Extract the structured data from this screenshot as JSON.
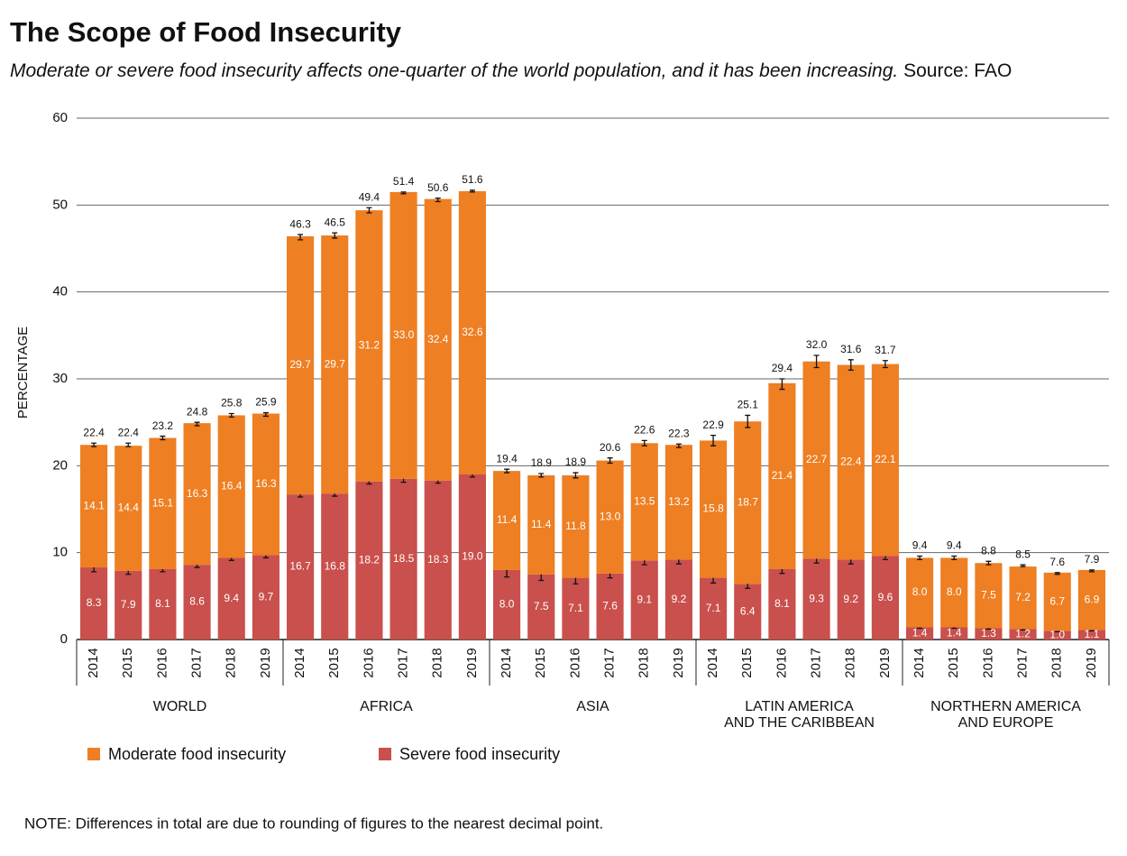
{
  "chart_data": {
    "type": "stacked-bar",
    "title": "The Scope of Food Insecurity",
    "subtitle": "Moderate or severe food insecurity affects one-quarter of the world population, and it has been increasing.",
    "source": "Source: FAO",
    "y_label": "PERCENTAGE",
    "note": "NOTE: Differences in total are due to rounding of figures to the nearest decimal point.",
    "categories": [
      "2014",
      "2015",
      "2016",
      "2017",
      "2018",
      "2019",
      "2014",
      "2015",
      "2016",
      "2017",
      "2018",
      "2019",
      "2014",
      "2015",
      "2016",
      "2017",
      "2018",
      "2019",
      "2014",
      "2015",
      "2016",
      "2017",
      "2018",
      "2019",
      "2014",
      "2015",
      "2016",
      "2017",
      "2018",
      "2019"
    ],
    "groups": [
      [
        "WORLD"
      ],
      [
        "AFRICA"
      ],
      [
        "ASIA"
      ],
      [
        "LATIN AMERICA",
        "AND THE CARIBBEAN"
      ],
      [
        "NORTHERN AMERICA",
        "AND EUROPE"
      ]
    ],
    "series": [
      {
        "name": "Moderate food insecurity",
        "color": "#ee7f22",
        "values": [
          14.1,
          14.4,
          15.1,
          16.3,
          16.4,
          16.3,
          29.7,
          29.7,
          31.2,
          33.0,
          32.4,
          32.6,
          11.4,
          11.4,
          11.8,
          13.0,
          13.5,
          13.2,
          15.8,
          18.7,
          21.4,
          22.7,
          22.4,
          22.1,
          8.0,
          8.0,
          7.5,
          7.2,
          6.7,
          6.9
        ],
        "value_labels": [
          "14.1",
          "14.4",
          "15.1",
          "16.3",
          "16.4",
          "16.3",
          "29.7",
          "29.7",
          "31.2",
          "33.0",
          "32.4",
          "32.6",
          "11.4",
          "11.4",
          "11.8",
          "13.0",
          "13.5",
          "13.2",
          "15.8",
          "18.7",
          "21.4",
          "22.7",
          "22.4",
          "22.1",
          "8.0",
          "8.0",
          "7.5",
          "7.2",
          "6.7",
          "6.9"
        ]
      },
      {
        "name": "Severe food insecurity",
        "color": "#c9504c",
        "values": [
          8.3,
          7.9,
          8.1,
          8.6,
          9.4,
          9.7,
          16.7,
          16.8,
          18.2,
          18.5,
          18.3,
          19.0,
          8.0,
          7.5,
          7.1,
          7.6,
          9.1,
          9.2,
          7.1,
          6.4,
          8.1,
          9.3,
          9.2,
          9.6,
          1.4,
          1.4,
          1.3,
          1.2,
          1.0,
          1.1
        ],
        "value_labels": [
          "8.3",
          "7.9",
          "8.1",
          "8.6",
          "9.4",
          "9.7",
          "16.7",
          "16.8",
          "18.2",
          "18.5",
          "18.3",
          "19.0",
          "8.0",
          "7.5",
          "7.1",
          "7.6",
          "9.1",
          "9.2",
          "7.1",
          "6.4",
          "8.1",
          "9.3",
          "9.2",
          "9.6",
          "1.4",
          "1.4",
          "1.3",
          "1.2",
          "1.0",
          "1.1"
        ],
        "errors": [
          0.5,
          0.4,
          0.3,
          0.3,
          0.3,
          0.3,
          0.3,
          0.3,
          0.3,
          0.4,
          0.3,
          0.3,
          0.8,
          0.7,
          0.7,
          0.5,
          0.5,
          0.5,
          0.6,
          0.5,
          0.5,
          0.5,
          0.5,
          0.4,
          0.1,
          0.1,
          0.1,
          0.1,
          0.1,
          0.1
        ]
      }
    ],
    "totals": [
      22.4,
      22.4,
      23.2,
      24.8,
      25.8,
      25.9,
      46.3,
      46.5,
      49.4,
      51.4,
      50.6,
      51.6,
      19.4,
      18.9,
      18.9,
      20.6,
      22.6,
      22.3,
      22.9,
      25.1,
      29.4,
      32.0,
      31.6,
      31.7,
      9.4,
      9.4,
      8.8,
      8.5,
      7.6,
      7.9
    ],
    "total_labels": [
      "22.4",
      "22.4",
      "23.2",
      "24.8",
      "25.8",
      "25.9",
      "46.3",
      "46.5",
      "49.4",
      "51.4",
      "50.6",
      "51.6",
      "19.4",
      "18.9",
      "18.9",
      "20.6",
      "22.6",
      "22.3",
      "22.9",
      "25.1",
      "29.4",
      "32.0",
      "31.6",
      "31.7",
      "9.4",
      "9.4",
      "8.8",
      "8.5",
      "7.6",
      "7.9"
    ],
    "total_errors": [
      0.2,
      0.2,
      0.2,
      0.2,
      0.2,
      0.2,
      0.3,
      0.3,
      0.3,
      0.1,
      0.2,
      0.1,
      0.2,
      0.2,
      0.3,
      0.3,
      0.3,
      0.2,
      0.6,
      0.7,
      0.6,
      0.7,
      0.6,
      0.4,
      0.2,
      0.2,
      0.2,
      0.1,
      0.1,
      0.1
    ],
    "ylim": [
      0,
      60
    ],
    "yticks": [
      0,
      10,
      20,
      30,
      40,
      50,
      60
    ],
    "grid": true
  }
}
